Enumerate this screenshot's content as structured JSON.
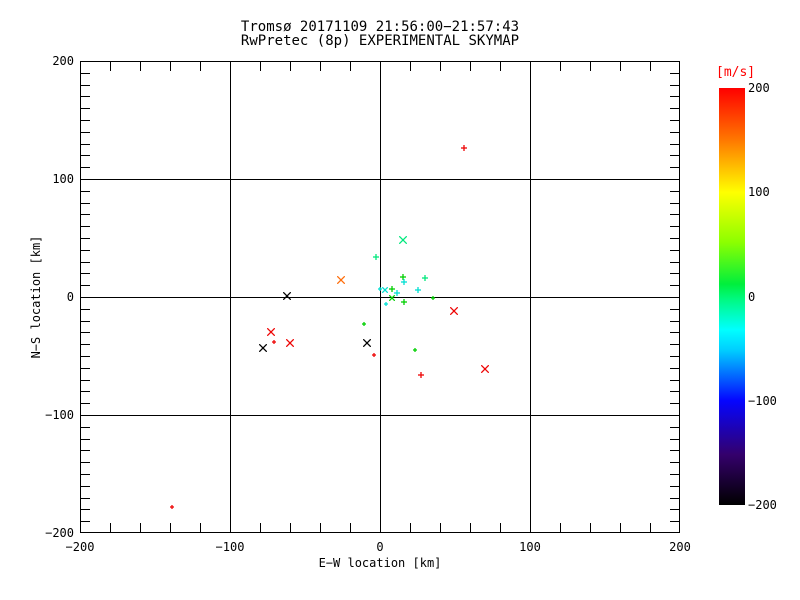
{
  "window": {
    "background": "#ffffff"
  },
  "chart_data": {
    "type": "scatter",
    "title": "Tromsø 20171109 21:56:00−21:57:43",
    "subtitle": "RwPretec (8p) EXPERIMENTAL SKYMAP",
    "xlabel": "E−W location [km]",
    "ylabel": "N−S location [km]",
    "xlim": [
      -200,
      200
    ],
    "ylim": [
      -200,
      200
    ],
    "xtick_values": [
      -200,
      -100,
      0,
      100,
      200
    ],
    "xtick_labels": [
      "−200",
      "−100",
      "0",
      "100",
      "200"
    ],
    "ytick_values": [
      200,
      100,
      0,
      -100,
      -200
    ],
    "ytick_labels": [
      "200",
      "100",
      "0",
      "−100",
      "−200"
    ],
    "x_minor_step_km": 20,
    "y_minor_step_km": 10,
    "grid": true,
    "frame_color": "#000000",
    "palette": {
      "red": "#ee0404",
      "orange": "#ff6d0a",
      "green": "#00cf00",
      "spring": "#00e87d",
      "cyan": "#00dfd2",
      "black": "#000000"
    },
    "points": [
      {
        "ew": 56,
        "ns": 126,
        "color": "red",
        "marker": "plus-small"
      },
      {
        "ew": 15,
        "ns": 48,
        "color": "spring",
        "marker": "x"
      },
      {
        "ew": -3,
        "ns": 34,
        "color": "spring",
        "marker": "plus-small"
      },
      {
        "ew": -26,
        "ns": 14,
        "color": "orange",
        "marker": "x"
      },
      {
        "ew": 15,
        "ns": 17,
        "color": "green",
        "marker": "plus-small"
      },
      {
        "ew": 16,
        "ns": 13,
        "color": "cyan",
        "marker": "plus-small"
      },
      {
        "ew": 30,
        "ns": 16,
        "color": "spring",
        "marker": "plus-small"
      },
      {
        "ew": 3,
        "ns": 6,
        "color": "cyan",
        "marker": "x-small"
      },
      {
        "ew": 0,
        "ns": 7,
        "color": "cyan",
        "marker": "tiny"
      },
      {
        "ew": 8,
        "ns": 7,
        "color": "green",
        "marker": "plus-small"
      },
      {
        "ew": 11,
        "ns": 3,
        "color": "cyan",
        "marker": "plus-small"
      },
      {
        "ew": 25,
        "ns": 6,
        "color": "cyan",
        "marker": "plus-small"
      },
      {
        "ew": 8,
        "ns": -1,
        "color": "green",
        "marker": "x-small"
      },
      {
        "ew": 16,
        "ns": -4,
        "color": "green",
        "marker": "plus-small"
      },
      {
        "ew": 4,
        "ns": -6,
        "color": "cyan",
        "marker": "tiny"
      },
      {
        "ew": 35,
        "ns": -1,
        "color": "green",
        "marker": "tiny"
      },
      {
        "ew": 49,
        "ns": -12,
        "color": "red",
        "marker": "x"
      },
      {
        "ew": -11,
        "ns": -23,
        "color": "green",
        "marker": "tiny"
      },
      {
        "ew": -9,
        "ns": -39,
        "color": "black",
        "marker": "x"
      },
      {
        "ew": -62,
        "ns": 1,
        "color": "black",
        "marker": "x"
      },
      {
        "ew": -73,
        "ns": -30,
        "color": "red",
        "marker": "x"
      },
      {
        "ew": -71,
        "ns": -38,
        "color": "red",
        "marker": "tiny"
      },
      {
        "ew": -60,
        "ns": -39,
        "color": "red",
        "marker": "x"
      },
      {
        "ew": -78,
        "ns": -43,
        "color": "black",
        "marker": "x"
      },
      {
        "ew": -4,
        "ns": -49,
        "color": "red",
        "marker": "tiny"
      },
      {
        "ew": 23,
        "ns": -45,
        "color": "green",
        "marker": "tiny"
      },
      {
        "ew": 27,
        "ns": -66,
        "color": "red",
        "marker": "plus-small"
      },
      {
        "ew": 70,
        "ns": -61,
        "color": "red",
        "marker": "x"
      },
      {
        "ew": -139,
        "ns": -178,
        "color": "red",
        "marker": "tiny"
      }
    ],
    "colorbar": {
      "label": "[m/s]",
      "label_color": "#ff0000",
      "range": [
        -200,
        200
      ],
      "tick_values": [
        200,
        100,
        0,
        -100,
        -200
      ],
      "tick_labels": [
        "200",
        "100",
        "0",
        "−100",
        "−200"
      ],
      "gradient_stops": [
        {
          "pos": 0,
          "color": "#ff0000"
        },
        {
          "pos": 12,
          "color": "#ff7300"
        },
        {
          "pos": 25,
          "color": "#ffff00"
        },
        {
          "pos": 37,
          "color": "#8cff00"
        },
        {
          "pos": 47,
          "color": "#00ef3c"
        },
        {
          "pos": 51,
          "color": "#00fa87"
        },
        {
          "pos": 58,
          "color": "#00ffff"
        },
        {
          "pos": 63,
          "color": "#00ccff"
        },
        {
          "pos": 75,
          "color": "#0505ff"
        },
        {
          "pos": 88,
          "color": "#34006b"
        },
        {
          "pos": 100,
          "color": "#000000"
        }
      ]
    }
  }
}
